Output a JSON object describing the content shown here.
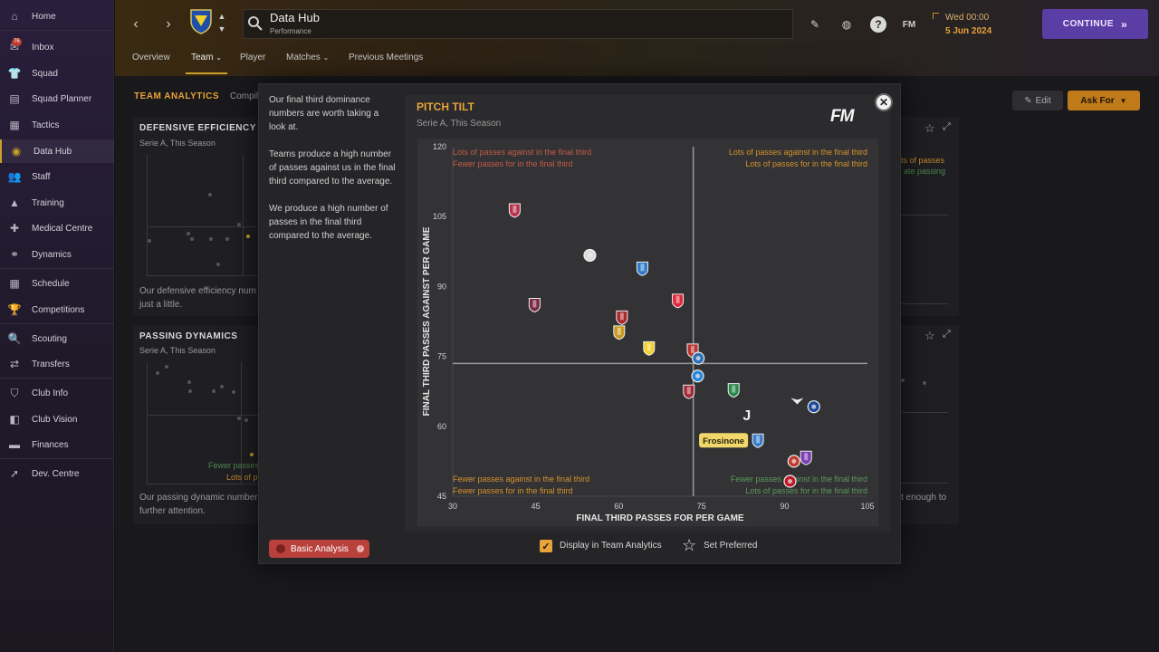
{
  "sidebar": {
    "items": [
      {
        "label": "Home",
        "icon": "home-icon"
      },
      {
        "label": "Inbox",
        "icon": "inbox-icon",
        "badge": "76"
      },
      {
        "label": "Squad",
        "icon": "shirt-icon"
      },
      {
        "label": "Squad Planner",
        "icon": "clipboard-icon"
      },
      {
        "label": "Tactics",
        "icon": "tactics-icon"
      },
      {
        "label": "Data Hub",
        "icon": "data-hub-icon",
        "active": true
      },
      {
        "label": "Staff",
        "icon": "staff-icon"
      },
      {
        "label": "Training",
        "icon": "training-icon"
      },
      {
        "label": "Medical Centre",
        "icon": "medical-icon"
      },
      {
        "label": "Dynamics",
        "icon": "dynamics-icon"
      },
      {
        "label": "Schedule",
        "icon": "calendar-icon"
      },
      {
        "label": "Competitions",
        "icon": "trophy-icon"
      },
      {
        "label": "Scouting",
        "icon": "search-icon"
      },
      {
        "label": "Transfers",
        "icon": "transfer-icon"
      },
      {
        "label": "Club Info",
        "icon": "shield-icon"
      },
      {
        "label": "Club Vision",
        "icon": "vision-icon"
      },
      {
        "label": "Finances",
        "icon": "finances-icon"
      },
      {
        "label": "Dev. Centre",
        "icon": "dev-centre-icon"
      }
    ]
  },
  "header": {
    "title": "Data Hub",
    "subtitle": "Performance",
    "date_line1": "Wed 00:00",
    "date_line2": "5 Jun 2024",
    "continue_label": "CONTINUE",
    "fm_label": "FM",
    "tabs": [
      "Overview",
      "Team",
      "Player",
      "Matches",
      "Previous Meetings"
    ]
  },
  "background": {
    "section_title": "TEAM ANALYTICS",
    "section_title_rest": "Compil",
    "edit_label": "Edit",
    "askfor_label": "Ask For",
    "defensive": {
      "title": "DEFENSIVE EFFICIENCY",
      "subtitle": "Serie A, This Season",
      "text1": "Our defensive efficiency num",
      "text2": "just a little."
    },
    "passing": {
      "title": "PASSING DYNAMICS",
      "subtitle": "Serie A, This Season",
      "text1": "Our passing dynamic number",
      "text2": "further attention.",
      "label1": "Fewer passes",
      "label2": "Lots of p"
    },
    "right_snippets": {
      "top1": "ts of passes",
      "top2": "ate passing",
      "bottom": "t enough to"
    }
  },
  "modal": {
    "paragraphs": [
      "Our final third dominance numbers are worth taking a look at.",
      "Teams produce a high number of passes against us in the final third compared to the average.",
      "We produce a high number of passes in the final third compared to the average."
    ],
    "basic_analysis_label": "Basic Analysis",
    "display_label": "Display in Team Analytics",
    "set_preferred_label": "Set Preferred",
    "fm_logo": "FM"
  },
  "chart_data": {
    "type": "scatter",
    "title": "PITCH TILT",
    "subtitle": "Serie A, This Season",
    "xlabel": "FINAL THIRD PASSES FOR PER GAME",
    "ylabel": "FINAL THIRD PASSES AGAINST PER GAME",
    "xlim": [
      30,
      105
    ],
    "ylim": [
      45,
      120
    ],
    "xticks": [
      30,
      45,
      60,
      75,
      90,
      105
    ],
    "yticks": [
      45,
      60,
      75,
      90,
      105,
      120
    ],
    "average": {
      "x": 73.5,
      "y": 73.5
    },
    "quadrants": {
      "top_left": [
        "Lots of passes against in the final third",
        "Fewer passes for in the final third"
      ],
      "top_right": [
        "Lots of passes against in the final third",
        "Lots of passes for in the final third"
      ],
      "bottom_left": [
        "Fewer passes against in the final third",
        "Fewer passes for in the final third"
      ],
      "bottom_right": [
        "Fewer passes against in the final third",
        "Lots of passes for in the final third"
      ]
    },
    "highlight_label": "Frosinone",
    "points": [
      {
        "x": 41.2,
        "y": 106.4,
        "color": "#b8324a",
        "shape": "shield"
      },
      {
        "x": 44.8,
        "y": 86.1,
        "color": "#7a2a40",
        "shape": "shield"
      },
      {
        "x": 54.8,
        "y": 96.7,
        "color": "#dddddd",
        "shape": "circle"
      },
      {
        "x": 64.3,
        "y": 93.9,
        "color": "#2f7cc8",
        "shape": "shield"
      },
      {
        "x": 70.7,
        "y": 87.0,
        "color": "#e0283a",
        "shape": "shield"
      },
      {
        "x": 60.6,
        "y": 83.4,
        "color": "#a8282e",
        "shape": "shield"
      },
      {
        "x": 60.1,
        "y": 80.2,
        "color": "#c89a20",
        "shape": "shield"
      },
      {
        "x": 65.5,
        "y": 76.8,
        "color": "#f2d22a",
        "shape": "shield"
      },
      {
        "x": 73.4,
        "y": 76.3,
        "color": "#b8342e",
        "shape": "shield"
      },
      {
        "x": 74.4,
        "y": 74.6,
        "color": "#2d6fb4",
        "shape": "circle"
      },
      {
        "x": 74.3,
        "y": 70.8,
        "color": "#2a86d6",
        "shape": "circle"
      },
      {
        "x": 72.7,
        "y": 67.5,
        "color": "#a02a36",
        "shape": "shield"
      },
      {
        "x": 80.8,
        "y": 67.8,
        "color": "#2a8a4a",
        "shape": "shield"
      },
      {
        "x": 92.3,
        "y": 65.5,
        "color": "#eeeeee",
        "shape": "eagle"
      },
      {
        "x": 95.3,
        "y": 64.2,
        "color": "#1d4a9a",
        "shape": "circle"
      },
      {
        "x": 83.2,
        "y": 62.3,
        "color": "#f0f0f0",
        "shape": "juve"
      },
      {
        "x": 85.2,
        "y": 57.0,
        "color": "#3a7fc8",
        "shape": "shield"
      },
      {
        "x": 93.9,
        "y": 53.3,
        "color": "#7a3cb4",
        "shape": "shield"
      },
      {
        "x": 91.7,
        "y": 52.5,
        "color": "#c0392b",
        "shape": "circle"
      },
      {
        "x": 91.0,
        "y": 48.2,
        "color": "#c0182a",
        "shape": "circle"
      }
    ],
    "grid": false,
    "legend": "none"
  },
  "colors": {
    "accent": "#e8a33a",
    "continue": "#5b3da6",
    "basic_analysis": "#b8413c"
  }
}
